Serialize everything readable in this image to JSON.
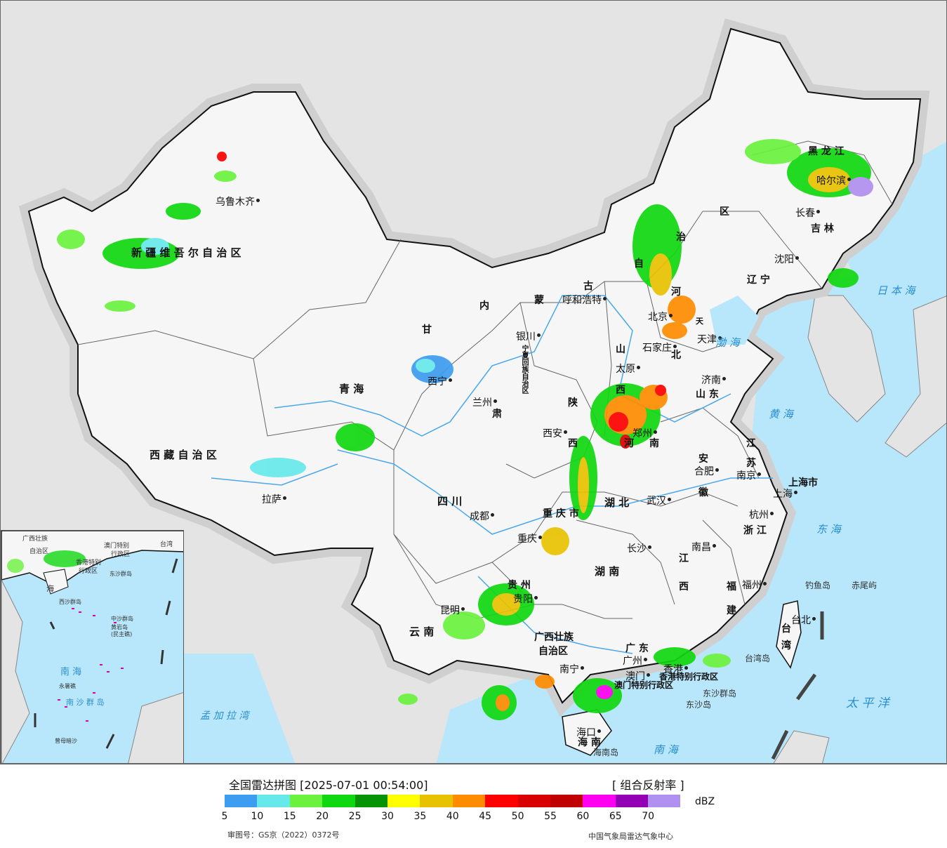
{
  "map": {
    "province_labels": [
      {
        "id": "xinjiang",
        "text": "新 疆 维 吾 尔 自 治 区"
      },
      {
        "id": "xizang",
        "text": "西 藏 自 治 区"
      },
      {
        "id": "qinghai",
        "text": "青    海"
      },
      {
        "id": "gansu",
        "text": "甘"
      },
      {
        "id": "gansu2",
        "text": "肃"
      },
      {
        "id": "neimenggu1",
        "text": "内"
      },
      {
        "id": "neimenggu2",
        "text": "蒙"
      },
      {
        "id": "neimenggu3",
        "text": "古"
      },
      {
        "id": "neimenggu4",
        "text": "自"
      },
      {
        "id": "neimenggu5",
        "text": "治"
      },
      {
        "id": "neimenggu6",
        "text": "区"
      },
      {
        "id": "heilongjiang",
        "text": "黑  龙  江"
      },
      {
        "id": "jilin",
        "text": "吉  林"
      },
      {
        "id": "liaoning",
        "text": "辽  宁"
      },
      {
        "id": "hebei",
        "text": "河"
      },
      {
        "id": "hebei2",
        "text": "北"
      },
      {
        "id": "shanxi1",
        "text": "山"
      },
      {
        "id": "shanxi2",
        "text": "西"
      },
      {
        "id": "shandong",
        "text": "山  东"
      },
      {
        "id": "henan1",
        "text": "河"
      },
      {
        "id": "henan2",
        "text": "南"
      },
      {
        "id": "shaanxi1",
        "text": "陕"
      },
      {
        "id": "shaanxi2",
        "text": "西"
      },
      {
        "id": "ningxia",
        "text": "宁夏回族自治区"
      },
      {
        "id": "sichuan",
        "text": "四    川"
      },
      {
        "id": "chongqing",
        "text": "重 庆 市"
      },
      {
        "id": "hubei",
        "text": "湖    北"
      },
      {
        "id": "hunan",
        "text": "湖    南"
      },
      {
        "id": "anhui1",
        "text": "安"
      },
      {
        "id": "anhui2",
        "text": "徽"
      },
      {
        "id": "jiangsu1",
        "text": "江"
      },
      {
        "id": "jiangsu2",
        "text": "苏"
      },
      {
        "id": "zhejiang",
        "text": "浙 江"
      },
      {
        "id": "jiangxi1",
        "text": "江"
      },
      {
        "id": "jiangxi2",
        "text": "西"
      },
      {
        "id": "fujian1",
        "text": "福"
      },
      {
        "id": "fujian2",
        "text": "建"
      },
      {
        "id": "guizhou",
        "text": "贵    州"
      },
      {
        "id": "yunnan",
        "text": "云    南"
      },
      {
        "id": "guangxi1",
        "text": "广西壮族"
      },
      {
        "id": "guangxi2",
        "text": "自治区"
      },
      {
        "id": "guangdong",
        "text": "广    东"
      },
      {
        "id": "hainan",
        "text": "海  南"
      },
      {
        "id": "taiwan1",
        "text": "台"
      },
      {
        "id": "taiwan2",
        "text": "湾"
      },
      {
        "id": "shanghai",
        "text": "上海市"
      },
      {
        "id": "tianjin",
        "text": "天"
      },
      {
        "id": "hk",
        "text": "香港特别行政区"
      },
      {
        "id": "macau",
        "text": "澳门特别行政区"
      }
    ],
    "cities": [
      {
        "id": "urumqi",
        "text": "乌鲁木齐"
      },
      {
        "id": "lhasa",
        "text": "拉萨"
      },
      {
        "id": "xining",
        "text": "西宁"
      },
      {
        "id": "lanzhou",
        "text": "兰州"
      },
      {
        "id": "yinchuan",
        "text": "银川"
      },
      {
        "id": "hohhot",
        "text": "呼和浩特"
      },
      {
        "id": "beijing",
        "text": "北京"
      },
      {
        "id": "tianjin",
        "text": "天津"
      },
      {
        "id": "shijiazhuang",
        "text": "石家庄"
      },
      {
        "id": "taiyuan",
        "text": "太原"
      },
      {
        "id": "jinan",
        "text": "济南"
      },
      {
        "id": "zhengzhou",
        "text": "郑州"
      },
      {
        "id": "xian",
        "text": "西安"
      },
      {
        "id": "chengdu",
        "text": "成都"
      },
      {
        "id": "chongqing",
        "text": "重庆"
      },
      {
        "id": "wuhan",
        "text": "武汉"
      },
      {
        "id": "hefei",
        "text": "合肥"
      },
      {
        "id": "nanjing",
        "text": "南京"
      },
      {
        "id": "shanghai",
        "text": "上海"
      },
      {
        "id": "hangzhou",
        "text": "杭州"
      },
      {
        "id": "nanchang",
        "text": "南昌"
      },
      {
        "id": "changsha",
        "text": "长沙"
      },
      {
        "id": "fuzhou",
        "text": "福州"
      },
      {
        "id": "taipei",
        "text": "台北"
      },
      {
        "id": "guiyang",
        "text": "贵阳"
      },
      {
        "id": "kunming",
        "text": "昆明"
      },
      {
        "id": "nanning",
        "text": "南宁"
      },
      {
        "id": "guangzhou",
        "text": "广州"
      },
      {
        "id": "hongkong",
        "text": "香港"
      },
      {
        "id": "macau",
        "text": "澳门"
      },
      {
        "id": "haikou",
        "text": "海口"
      },
      {
        "id": "shenyang",
        "text": "沈阳"
      },
      {
        "id": "changchun",
        "text": "长春"
      },
      {
        "id": "harbin",
        "text": "哈尔滨"
      }
    ],
    "sea_labels": [
      {
        "id": "japan-sea",
        "text": "日 本 海"
      },
      {
        "id": "bohai",
        "text": "渤 海"
      },
      {
        "id": "yellow-sea",
        "text": "黄 海"
      },
      {
        "id": "east-sea",
        "text": "东 海"
      },
      {
        "id": "pacific",
        "text": "太  平  洋"
      },
      {
        "id": "south-sea",
        "text": "南    海"
      },
      {
        "id": "bengal",
        "text": "孟 加 拉 湾"
      }
    ],
    "island_labels": [
      {
        "id": "diaoyu",
        "text": "钓鱼岛"
      },
      {
        "id": "chiwei",
        "text": "赤尾屿"
      },
      {
        "id": "taiwan-island",
        "text": "台湾岛"
      },
      {
        "id": "dongsha-islands",
        "text": "东沙群岛"
      },
      {
        "id": "dongsha-island",
        "text": "东沙岛"
      },
      {
        "id": "hainan-island",
        "text": "海南岛"
      }
    ],
    "inset_labels": [
      {
        "id": "inset-south-sea",
        "text": "南    海"
      },
      {
        "id": "inset-taiwan",
        "text": "台湾"
      },
      {
        "id": "inset-hainan",
        "text": "海"
      },
      {
        "id": "inset-zhongsha",
        "text": "中沙群岛"
      },
      {
        "id": "inset-huangyan",
        "text": "黄岩岛"
      },
      {
        "id": "inset-minzhu",
        "text": "(民主礁)"
      },
      {
        "id": "inset-xisha",
        "text": "西沙群岛"
      },
      {
        "id": "inset-nansha",
        "text": "南 沙 群 岛"
      },
      {
        "id": "inset-yongshu",
        "text": "永暑礁"
      },
      {
        "id": "inset-zengmu",
        "text": "曾母暗沙"
      },
      {
        "id": "inset-dongsha",
        "text": "东沙群岛"
      },
      {
        "id": "inset-guangxi",
        "text": "广西壮族"
      },
      {
        "id": "inset-gx2",
        "text": "自治区"
      },
      {
        "id": "inset-hk",
        "text": "香港特别"
      },
      {
        "id": "inset-hk2",
        "text": "行政区"
      },
      {
        "id": "inset-macau",
        "text": "澳门特别"
      },
      {
        "id": "inset-macau2",
        "text": "行政区"
      }
    ]
  },
  "legend": {
    "title": "全国雷达拼图 [2025-07-01 00:54:00]",
    "product": "[ 组合反射率 ]",
    "unit": "dBZ",
    "colors": [
      "#3d9df0",
      "#67e8ea",
      "#6bf23e",
      "#10d810",
      "#069406",
      "#ffff00",
      "#e8c200",
      "#ff8c00",
      "#ff0000",
      "#d80000",
      "#c00000",
      "#ff00f0",
      "#9400b4",
      "#b090f0"
    ],
    "ticks": [
      "5",
      "10",
      "15",
      "20",
      "25",
      "30",
      "35",
      "40",
      "45",
      "50",
      "55",
      "60",
      "65",
      "70"
    ],
    "approval": "审图号：GS京（2022）0372号",
    "agency": "中国气象局雷达气象中心"
  },
  "colors": {
    "sea": "#b8e6fb",
    "land_outside": "#e4e4e4",
    "land_china": "#f6f6f6",
    "border": "#111111",
    "province_border": "#666666",
    "river": "#4aa8e8"
  }
}
